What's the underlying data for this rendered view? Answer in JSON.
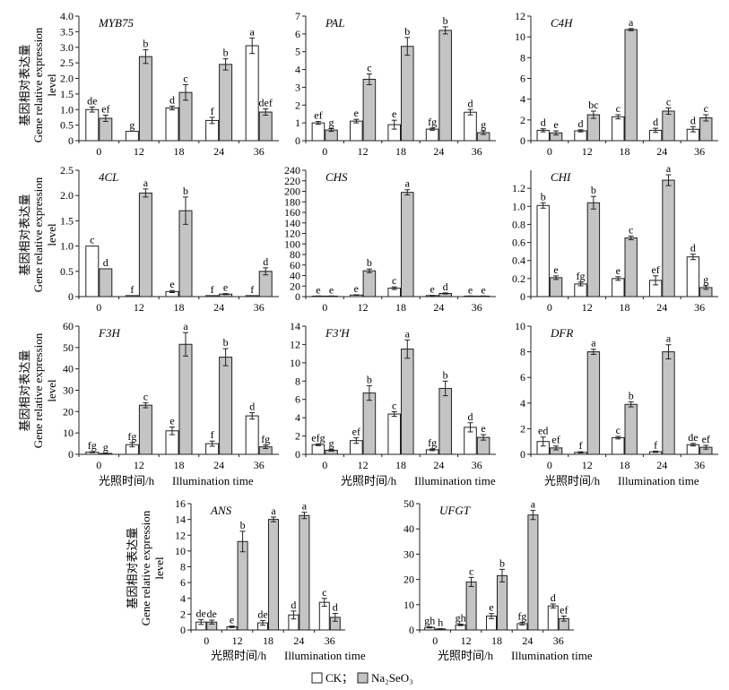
{
  "figure": {
    "ylabel_cn": "基因相对表达量",
    "ylabel_en_1": "Gene relative expression",
    "ylabel_en_2": "level",
    "xlabel_cn": "光照时间/h",
    "xlabel_en": "Illumination time",
    "legend": [
      {
        "label": "CK；",
        "color": "#ffffff"
      },
      {
        "label": "Na₂SeO₃",
        "color": "#c4c4c4"
      }
    ]
  },
  "chart_data": [
    {
      "type": "bar",
      "title": "MYB75",
      "categories": [
        "0",
        "12",
        "18",
        "24",
        "36"
      ],
      "ylim": [
        0,
        4.0
      ],
      "yticks": [
        0,
        0.5,
        1.0,
        1.5,
        2.0,
        2.5,
        3.0,
        3.5,
        4.0
      ],
      "tick_labels": [
        "0",
        "0.5",
        "1.0",
        "1.5",
        "2.0",
        "2.5",
        "3.0",
        "3.5",
        "4.0"
      ],
      "series": [
        {
          "name": "CK",
          "values": [
            1.0,
            0.3,
            1.05,
            0.65,
            3.05
          ],
          "errors": [
            0.08,
            0.0,
            0.06,
            0.1,
            0.25
          ],
          "letters": [
            "de",
            "g",
            "d",
            "f",
            "a"
          ]
        },
        {
          "name": "Na2SeO3",
          "values": [
            0.72,
            2.7,
            1.55,
            2.45,
            0.92
          ],
          "errors": [
            0.1,
            0.22,
            0.25,
            0.18,
            0.1
          ],
          "letters": [
            "ef",
            "b",
            "c",
            "b",
            "def"
          ]
        }
      ]
    },
    {
      "type": "bar",
      "title": "PAL",
      "categories": [
        "0",
        "12",
        "18",
        "24",
        "36"
      ],
      "ylim": [
        0,
        7
      ],
      "yticks": [
        0,
        1,
        2,
        3,
        4,
        5,
        6,
        7
      ],
      "tick_labels": [
        "0",
        "1",
        "2",
        "3",
        "4",
        "5",
        "6",
        "7"
      ],
      "series": [
        {
          "name": "CK",
          "values": [
            1.0,
            1.1,
            0.9,
            0.65,
            1.6
          ],
          "errors": [
            0.08,
            0.1,
            0.25,
            0.06,
            0.15
          ],
          "letters": [
            "ef",
            "e",
            "e",
            "fg",
            "d"
          ]
        },
        {
          "name": "Na2SeO3",
          "values": [
            0.6,
            3.45,
            5.3,
            6.2,
            0.45
          ],
          "errors": [
            0.08,
            0.3,
            0.5,
            0.2,
            0.1
          ],
          "letters": [
            "g",
            "c",
            "b",
            "b",
            "g"
          ]
        }
      ]
    },
    {
      "type": "bar",
      "title": "C4H",
      "categories": [
        "0",
        "12",
        "18",
        "24",
        "36"
      ],
      "ylim": [
        0,
        12
      ],
      "yticks": [
        0,
        2,
        4,
        6,
        8,
        10,
        12
      ],
      "tick_labels": [
        "0",
        "2",
        "4",
        "6",
        "8",
        "10",
        "12"
      ],
      "series": [
        {
          "name": "CK",
          "values": [
            1.0,
            0.95,
            2.3,
            1.0,
            1.1
          ],
          "errors": [
            0.15,
            0.1,
            0.2,
            0.2,
            0.25
          ],
          "letters": [
            "d",
            "d",
            "c",
            "d",
            "d"
          ]
        },
        {
          "name": "Na2SeO3",
          "values": [
            0.75,
            2.5,
            10.7,
            2.85,
            2.2
          ],
          "errors": [
            0.2,
            0.35,
            0.1,
            0.3,
            0.3
          ],
          "letters": [
            "e",
            "bc",
            "a",
            "c",
            "c"
          ]
        }
      ]
    },
    {
      "type": "bar",
      "title": "4CL",
      "categories": [
        "0",
        "12",
        "18",
        "24",
        "36"
      ],
      "ylim": [
        0,
        2.5
      ],
      "yticks": [
        0,
        0.5,
        1.0,
        1.5,
        2.0,
        2.5
      ],
      "tick_labels": [
        "0",
        "0.5",
        "1.0",
        "1.5",
        "2.0",
        "2.5"
      ],
      "series": [
        {
          "name": "CK",
          "values": [
            1.0,
            0.02,
            0.1,
            0.02,
            0.02
          ],
          "errors": [
            0.0,
            0.0,
            0.02,
            0.0,
            0.0
          ],
          "letters": [
            "c",
            "f",
            "e",
            "f",
            "f"
          ]
        },
        {
          "name": "Na2SeO3",
          "values": [
            0.55,
            2.05,
            1.7,
            0.05,
            0.5
          ],
          "errors": [
            0.0,
            0.08,
            0.27,
            0.01,
            0.07
          ],
          "letters": [
            "d",
            "a",
            "b",
            "e",
            "d"
          ]
        }
      ]
    },
    {
      "type": "bar",
      "title": "CHS",
      "categories": [
        "0",
        "12",
        "18",
        "24",
        "36"
      ],
      "ylim": [
        0,
        240
      ],
      "yticks": [
        0,
        20,
        40,
        60,
        80,
        100,
        120,
        140,
        160,
        180,
        200,
        220,
        240
      ],
      "tick_labels": [
        "0",
        "20",
        "40",
        "60",
        "80",
        "100",
        "120",
        "140",
        "160",
        "180",
        "200",
        "220",
        "240"
      ],
      "series": [
        {
          "name": "CK",
          "values": [
            1.0,
            3.0,
            16.0,
            2.0,
            1.0
          ],
          "errors": [
            0.2,
            0.5,
            2.5,
            0.3,
            0.2
          ],
          "letters": [
            "e",
            "e",
            "c",
            "e",
            "e"
          ]
        },
        {
          "name": "Na2SeO3",
          "values": [
            1.0,
            49.0,
            198.0,
            6.0,
            1.0
          ],
          "errors": [
            0.2,
            3.5,
            5.0,
            1.0,
            0.2
          ],
          "letters": [
            "e",
            "b",
            "a",
            "d",
            "e"
          ]
        }
      ]
    },
    {
      "type": "bar",
      "title": "CHI",
      "categories": [
        "0",
        "12",
        "18",
        "24",
        "36"
      ],
      "ylim": [
        0,
        1.4
      ],
      "yticks": [
        0,
        0.2,
        0.4,
        0.6,
        0.8,
        1.0,
        1.2
      ],
      "tick_labels": [
        "0",
        "0.2",
        "0.4",
        "0.6",
        "0.8",
        "1.0",
        "1.2"
      ],
      "series": [
        {
          "name": "CK",
          "values": [
            1.01,
            0.14,
            0.2,
            0.18,
            0.44
          ],
          "errors": [
            0.03,
            0.02,
            0.02,
            0.05,
            0.03
          ],
          "letters": [
            "b",
            "fg",
            "e",
            "ef",
            "d"
          ]
        },
        {
          "name": "Na2SeO3",
          "values": [
            0.21,
            1.04,
            0.65,
            1.29,
            0.1
          ],
          "errors": [
            0.02,
            0.07,
            0.02,
            0.06,
            0.02
          ],
          "letters": [
            "e",
            "b",
            "c",
            "a",
            "g"
          ]
        }
      ]
    },
    {
      "type": "bar",
      "title": "F3H",
      "categories": [
        "0",
        "12",
        "18",
        "24",
        "36"
      ],
      "ylim": [
        0,
        60
      ],
      "yticks": [
        0,
        10,
        20,
        30,
        40,
        50,
        60
      ],
      "tick_labels": [
        "0",
        "10",
        "20",
        "30",
        "40",
        "50",
        "60"
      ],
      "series": [
        {
          "name": "CK",
          "values": [
            1.0,
            4.5,
            11.0,
            5.0,
            18.0
          ],
          "errors": [
            0.2,
            1.0,
            1.8,
            1.2,
            1.5
          ],
          "letters": [
            "fg",
            "fg",
            "e",
            "f",
            "d"
          ]
        },
        {
          "name": "Na2SeO3",
          "values": [
            0.4,
            23.0,
            51.5,
            45.5,
            3.5
          ],
          "errors": [
            0.1,
            1.2,
            5.5,
            4.0,
            0.8
          ],
          "letters": [
            "g",
            "c",
            "a",
            "b",
            "fg"
          ]
        }
      ]
    },
    {
      "type": "bar",
      "title": "F3'H",
      "categories": [
        "0",
        "12",
        "18",
        "24",
        "36"
      ],
      "ylim": [
        0,
        14
      ],
      "yticks": [
        0,
        2,
        4,
        6,
        8,
        10,
        12,
        14
      ],
      "tick_labels": [
        "0",
        "2",
        "4",
        "6",
        "8",
        "10",
        "12",
        "14"
      ],
      "series": [
        {
          "name": "CK",
          "values": [
            1.05,
            1.5,
            4.4,
            0.5,
            2.95
          ],
          "errors": [
            0.1,
            0.3,
            0.25,
            0.1,
            0.5
          ],
          "letters": [
            "efg",
            "ef",
            "c",
            "fg",
            "d"
          ]
        },
        {
          "name": "Na2SeO3",
          "values": [
            0.45,
            6.7,
            11.5,
            7.2,
            1.85
          ],
          "errors": [
            0.1,
            0.8,
            1.0,
            0.8,
            0.3
          ],
          "letters": [
            "g",
            "b",
            "a",
            "b",
            "e"
          ]
        }
      ]
    },
    {
      "type": "bar",
      "title": "DFR",
      "categories": [
        "0",
        "12",
        "18",
        "24",
        "36"
      ],
      "ylim": [
        0,
        10
      ],
      "yticks": [
        0,
        2,
        4,
        6,
        8,
        10
      ],
      "tick_labels": [
        "0",
        "2",
        "4",
        "6",
        "8",
        "10"
      ],
      "series": [
        {
          "name": "CK",
          "values": [
            1.0,
            0.15,
            1.3,
            0.2,
            0.75
          ],
          "errors": [
            0.35,
            0.05,
            0.1,
            0.05,
            0.1
          ],
          "letters": [
            "ed",
            "f",
            "c",
            "f",
            "de"
          ]
        },
        {
          "name": "Na2SeO3",
          "values": [
            0.5,
            8.0,
            3.9,
            8.0,
            0.55
          ],
          "errors": [
            0.15,
            0.2,
            0.2,
            0.55,
            0.15
          ],
          "letters": [
            "ef",
            "a",
            "b",
            "a",
            "ef"
          ]
        }
      ]
    },
    {
      "type": "bar",
      "title": "ANS",
      "categories": [
        "0",
        "12",
        "18",
        "24",
        "36"
      ],
      "ylim": [
        0,
        16
      ],
      "yticks": [
        0,
        2,
        4,
        6,
        8,
        10,
        12,
        14,
        16
      ],
      "tick_labels": [
        "0",
        "2",
        "4",
        "6",
        "8",
        "10",
        "12",
        "14",
        "16"
      ],
      "series": [
        {
          "name": "CK",
          "values": [
            1.0,
            0.4,
            0.9,
            1.9,
            3.5
          ],
          "errors": [
            0.3,
            0.1,
            0.3,
            0.5,
            0.5
          ],
          "letters": [
            "de",
            "e",
            "de",
            "d",
            "c"
          ]
        },
        {
          "name": "Na2SeO3",
          "values": [
            1.0,
            11.2,
            14.0,
            14.5,
            1.6
          ],
          "errors": [
            0.25,
            1.3,
            0.3,
            0.4,
            0.5
          ],
          "letters": [
            "de",
            "b",
            "a",
            "a",
            "d"
          ]
        }
      ]
    },
    {
      "type": "bar",
      "title": "UFGT",
      "categories": [
        "0",
        "12",
        "18",
        "24",
        "36"
      ],
      "ylim": [
        0,
        50
      ],
      "yticks": [
        0,
        10,
        20,
        30,
        40,
        50
      ],
      "tick_labels": [
        "0",
        "10",
        "20",
        "30",
        "40",
        "50"
      ],
      "series": [
        {
          "name": "CK",
          "values": [
            1.0,
            2.0,
            5.5,
            2.5,
            9.5
          ],
          "errors": [
            0.2,
            0.3,
            1.0,
            0.5,
            0.8
          ],
          "letters": [
            "gh",
            "gh",
            "e",
            "fg",
            "d"
          ]
        },
        {
          "name": "Na2SeO3",
          "values": [
            0.4,
            19.0,
            21.5,
            45.5,
            4.5
          ],
          "errors": [
            0.1,
            1.8,
            2.5,
            1.8,
            1.0
          ],
          "letters": [
            "h",
            "c",
            "b",
            "a",
            "ef"
          ]
        }
      ]
    }
  ]
}
